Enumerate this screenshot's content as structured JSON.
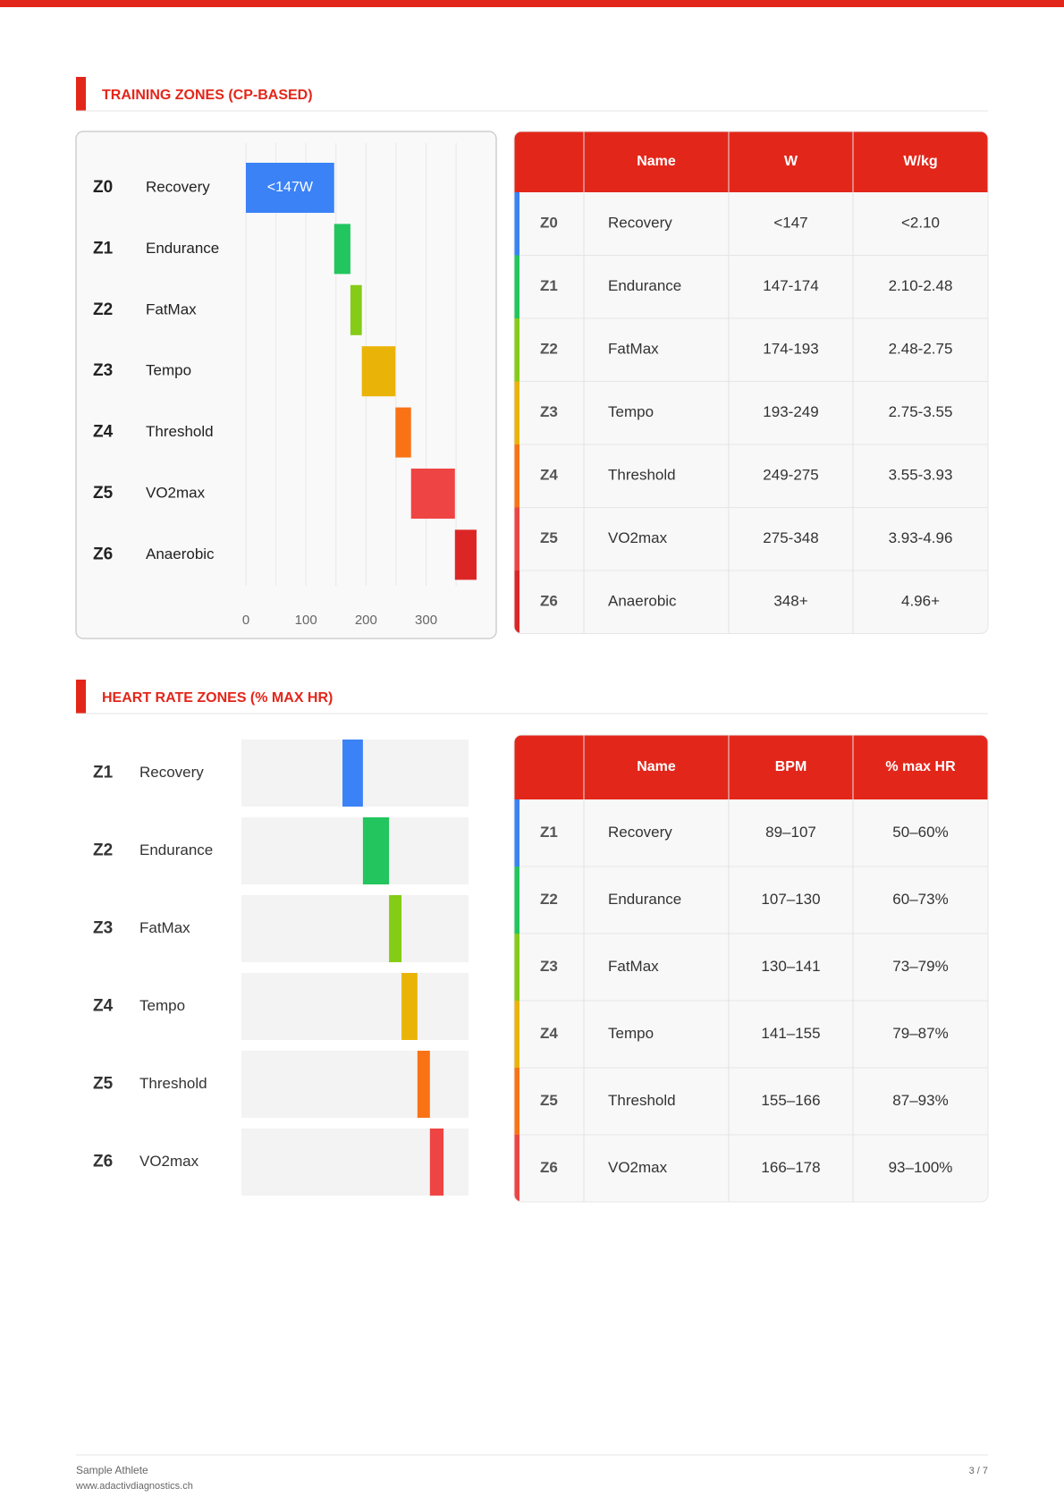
{
  "sections": [
    {
      "heading": "TRAINING ZONES (CP-BASED)",
      "chart": {
        "type": "range_bar",
        "xlim": [
          0,
          390
        ],
        "xticks": [
          0,
          100,
          200,
          300
        ],
        "minor_grid": [
          50,
          150,
          250,
          350
        ],
        "grid": true,
        "series": [
          {
            "zone": "Z0",
            "name": "Recovery",
            "color": "#3b82f6",
            "range": [
              0,
              147
            ],
            "value_label": "<147W"
          },
          {
            "zone": "Z1",
            "name": "Endurance",
            "color": "#22c55e",
            "range": [
              147,
              174
            ]
          },
          {
            "zone": "Z2",
            "name": "FatMax",
            "color": "#84cc16",
            "range": [
              174,
              193
            ]
          },
          {
            "zone": "Z3",
            "name": "Tempo",
            "color": "#eab308",
            "range": [
              193,
              249
            ]
          },
          {
            "zone": "Z4",
            "name": "Threshold",
            "color": "#f97316",
            "range": [
              249,
              275
            ]
          },
          {
            "zone": "Z5",
            "name": "VO2max",
            "color": "#ef4444",
            "range": [
              275,
              348
            ]
          },
          {
            "zone": "Z6",
            "name": "Anaerobic",
            "color": "#dc2626",
            "range": [
              348,
              384
            ]
          }
        ]
      },
      "table": {
        "columns": [
          "Name",
          "W",
          "W/kg"
        ],
        "rows": [
          [
            "Z0",
            "Recovery",
            "<147",
            "<2.10"
          ],
          [
            "Z1",
            "Endurance",
            "147-174",
            "2.10-2.48"
          ],
          [
            "Z2",
            "FatMax",
            "174-193",
            "2.48-2.75"
          ],
          [
            "Z3",
            "Tempo",
            "193-249",
            "2.75-3.55"
          ],
          [
            "Z4",
            "Threshold",
            "249-275",
            "3.55-3.93"
          ],
          [
            "Z5",
            "VO2max",
            "275-348",
            "3.93-4.96"
          ],
          [
            "Z6",
            "Anaerobic",
            "348+",
            "4.96+"
          ]
        ]
      }
    },
    {
      "heading": "HEART RATE ZONES (% MAX HR)",
      "chart": {
        "type": "range_track",
        "xlim": [
          0,
          200
        ],
        "track_color": "#f3f3f3",
        "series": [
          {
            "zone": "Z1",
            "name": "Recovery",
            "color": "#3b82f6",
            "range": [
              89,
              107
            ]
          },
          {
            "zone": "Z2",
            "name": "Endurance",
            "color": "#22c55e",
            "range": [
              107,
              130
            ]
          },
          {
            "zone": "Z3",
            "name": "FatMax",
            "color": "#84cc16",
            "range": [
              130,
              141
            ]
          },
          {
            "zone": "Z4",
            "name": "Tempo",
            "color": "#eab308",
            "range": [
              141,
              155
            ]
          },
          {
            "zone": "Z5",
            "name": "Threshold",
            "color": "#f97316",
            "range": [
              155,
              166
            ]
          },
          {
            "zone": "Z6",
            "name": "VO2max",
            "color": "#ef4444",
            "range": [
              166,
              178
            ]
          }
        ]
      },
      "table": {
        "columns": [
          "Name",
          "BPM",
          "% max HR"
        ],
        "rows": [
          [
            "Z1",
            "Recovery",
            "89–107",
            "50–60%"
          ],
          [
            "Z2",
            "Endurance",
            "107–130",
            "60–73%"
          ],
          [
            "Z3",
            "FatMax",
            "130–141",
            "73–79%"
          ],
          [
            "Z4",
            "Tempo",
            "141–155",
            "79–87%"
          ],
          [
            "Z5",
            "Threshold",
            "155–166",
            "87–93%"
          ],
          [
            "Z6",
            "VO2max",
            "166–178",
            "93–100%"
          ]
        ]
      }
    }
  ],
  "footer": {
    "athlete": "Sample Athlete",
    "website": "www.adactivdiagnostics.ch",
    "page": "3 / 7"
  }
}
